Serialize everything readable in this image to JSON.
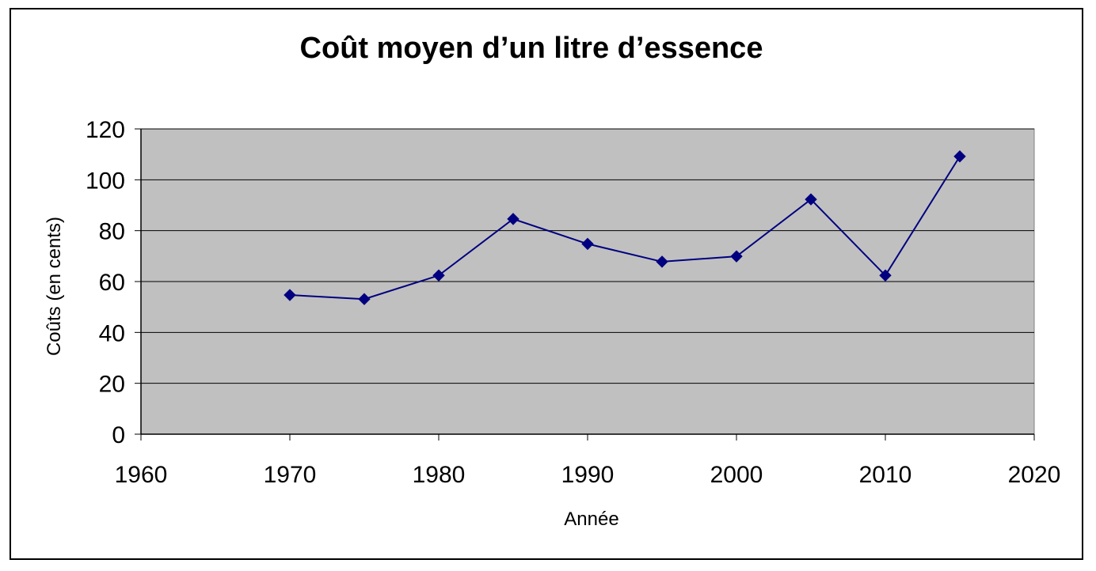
{
  "chart_data": {
    "type": "line",
    "title": "Coût moyen d’un litre d’essence",
    "xlabel": "Année",
    "ylabel": "Coûts (en cents)",
    "xlim": [
      1960,
      2020
    ],
    "ylim": [
      0,
      120
    ],
    "xticks": [
      1960,
      1970,
      1980,
      1990,
      2000,
      2010,
      2020
    ],
    "yticks": [
      0,
      20,
      40,
      60,
      80,
      100,
      120
    ],
    "grid": true,
    "legend": "none",
    "plot_background": "#c0c0c0",
    "series": [
      {
        "color": "#000080",
        "marker": "diamond",
        "x": [
          1970,
          1975,
          1980,
          1985,
          1990,
          1995,
          2000,
          2005,
          2010,
          2015
        ],
        "y": [
          54.7,
          53.1,
          62.4,
          84.6,
          74.8,
          67.8,
          69.9,
          92.3,
          62.4,
          109.2
        ]
      }
    ]
  }
}
